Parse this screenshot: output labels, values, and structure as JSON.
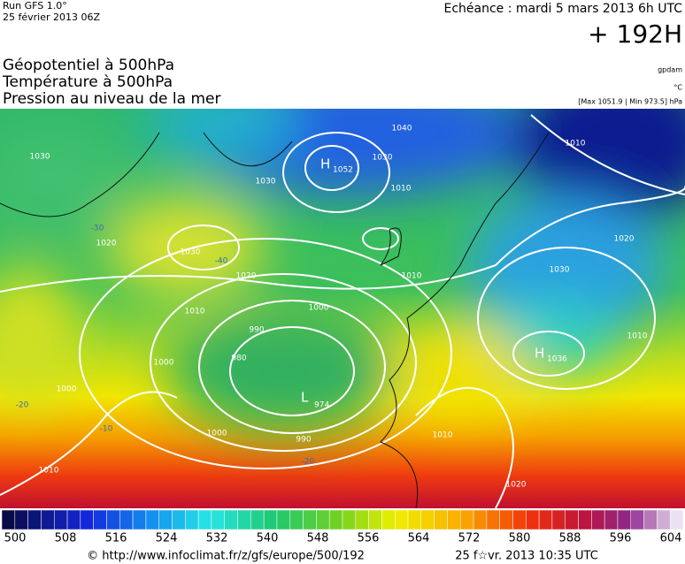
{
  "header": {
    "run": "Run GFS 1.0°",
    "date": "25 février 2013 06Z",
    "echeance": "Echéance : mardi 5 mars 2013 6h UTC",
    "lead": "+ 192H",
    "fields": [
      "Géopotentiel à 500hPa",
      "Température à 500hPa",
      "Pression au niveau de la mer"
    ],
    "units": [
      "gpdam",
      "°C",
      "[Max 1051.9 | Min 973.5] hPa"
    ]
  },
  "map": {
    "isobar_labels": [
      "1030",
      "1030",
      "1040",
      "1030",
      "1010",
      "1020",
      "1030",
      "1020",
      "1010",
      "1000",
      "990",
      "980",
      "1000",
      "1000",
      "1010",
      "1000",
      "990",
      "1010",
      "1020",
      "1030",
      "1010",
      "1010",
      "1020",
      "1010"
    ],
    "temperature_labels": [
      "-20",
      "-10",
      "-20",
      "-30",
      "-40"
    ],
    "centers": [
      {
        "symbol": "H",
        "value": "1052"
      },
      {
        "symbol": "H",
        "value": "1036"
      },
      {
        "symbol": "L",
        "value": "974"
      }
    ]
  },
  "colorbar": {
    "ticks": [
      500,
      508,
      516,
      524,
      532,
      540,
      548,
      556,
      564,
      572,
      580,
      588,
      596,
      604
    ]
  },
  "footer": {
    "url": "© http://www.infoclimat.fr/z/gfs/europe/500/192",
    "timestamp": "25 f☆vr. 2013 10:35 UTC"
  }
}
